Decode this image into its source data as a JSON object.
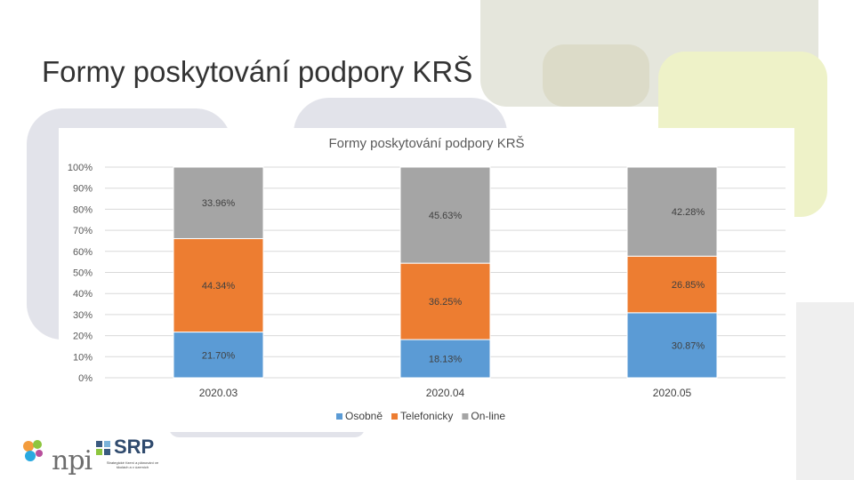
{
  "slide": {
    "title": "Formy poskytování podpory KRŠ"
  },
  "logos": {
    "npi": "npi",
    "srp": "SRP",
    "srp_sub": "Strategické řízení a plánování ve školách a v územích"
  },
  "colors": {
    "Osobně": "#5b9bd5",
    "Telefonicky": "#ed7d31",
    "On-line": "#a5a5a5"
  },
  "chart_data": {
    "type": "bar",
    "stacked": "percent",
    "title": "Formy poskytování podpory KRŠ",
    "categories": [
      "2020.03",
      "2020.04",
      "2020.05"
    ],
    "series": [
      {
        "name": "Osobně",
        "values": [
          21.7,
          18.13,
          30.87
        ],
        "labels": [
          "21.70%",
          "18.13%",
          "30.87%"
        ]
      },
      {
        "name": "Telefonicky",
        "values": [
          44.34,
          36.25,
          26.85
        ],
        "labels": [
          "44.34%",
          "36.25%",
          "26.85%"
        ]
      },
      {
        "name": "On-line",
        "values": [
          33.96,
          45.63,
          42.28
        ],
        "labels": [
          "33.96%",
          "45.63%",
          "42.28%"
        ]
      }
    ],
    "yticks": [
      "0%",
      "10%",
      "20%",
      "30%",
      "40%",
      "50%",
      "60%",
      "70%",
      "80%",
      "90%",
      "100%"
    ],
    "ylim": [
      0,
      100
    ],
    "grid": true,
    "legend": "bottom"
  }
}
